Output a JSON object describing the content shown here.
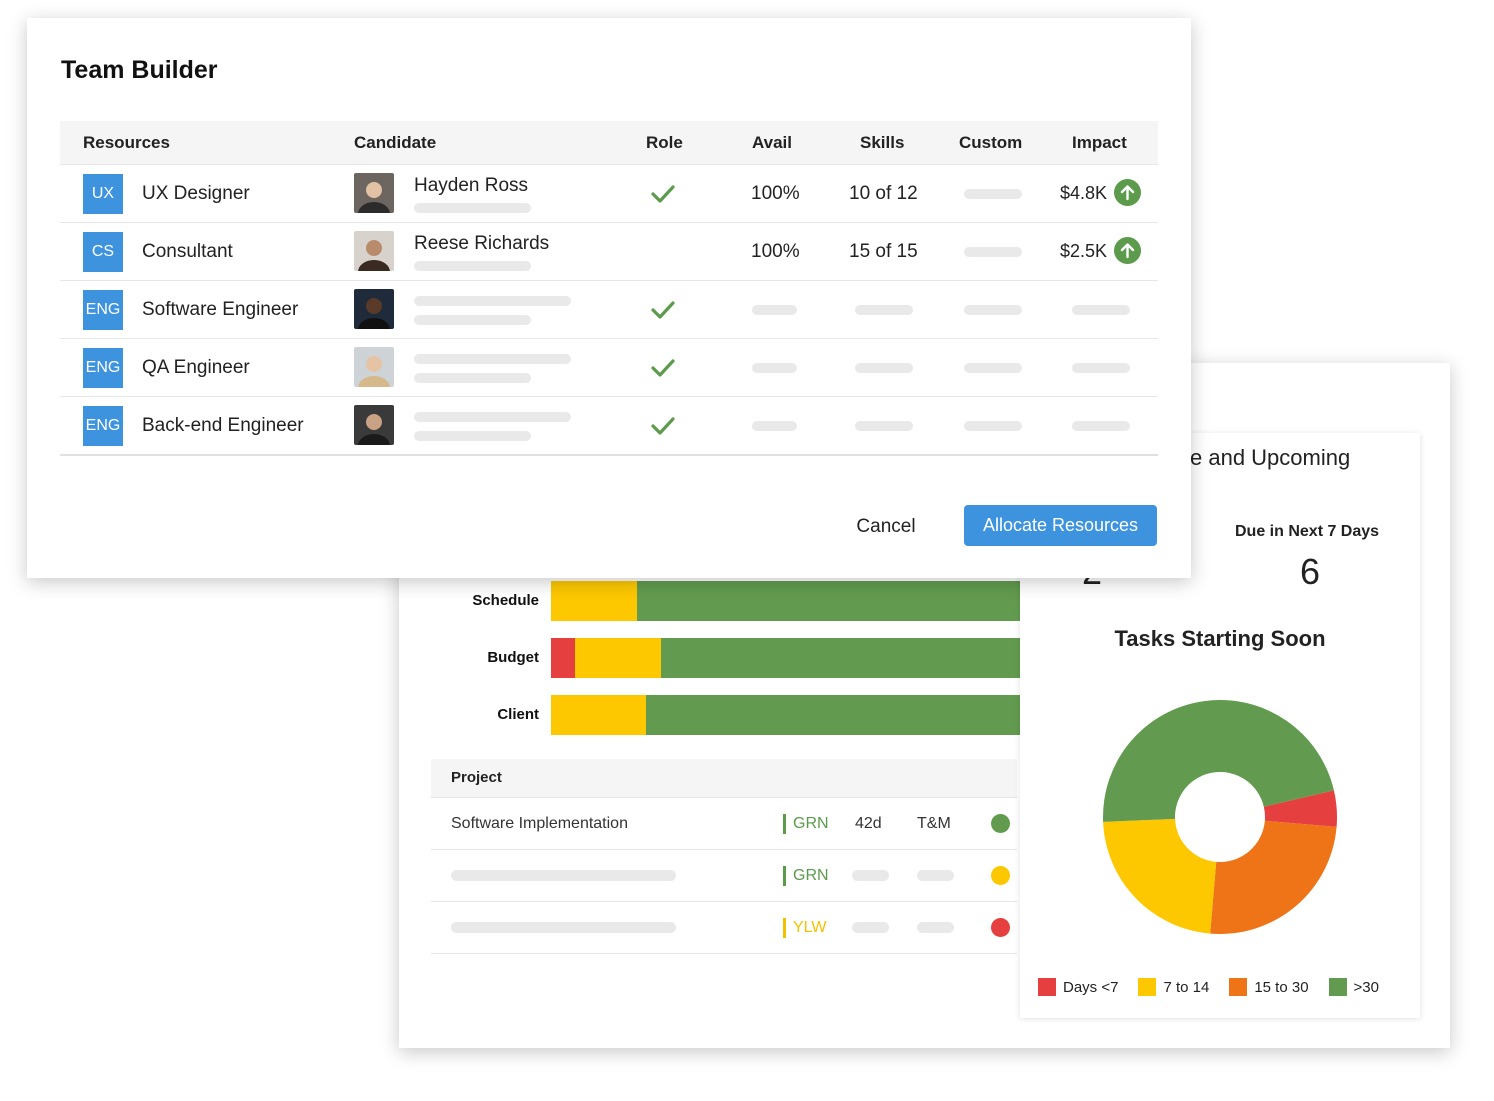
{
  "modal": {
    "title": "Team Builder",
    "columns": [
      "Resources",
      "Candidate",
      "Role",
      "Avail",
      "Skills",
      "Custom",
      "Impact"
    ],
    "rows": [
      {
        "badge": "UX",
        "resource": "UX Designer",
        "candidate": "Hayden Ross",
        "role_check": true,
        "avail": "100%",
        "skills": "10 of 12",
        "impact": "$4.8K"
      },
      {
        "badge": "CS",
        "resource": "Consultant",
        "candidate": "Reese Richards",
        "role_check": false,
        "avail": "100%",
        "skills": "15 of 15",
        "impact": "$2.5K"
      },
      {
        "badge": "ENG",
        "resource": "Software Engineer",
        "candidate": "",
        "role_check": true,
        "avail": "",
        "skills": "",
        "impact": ""
      },
      {
        "badge": "ENG",
        "resource": "QA Engineer",
        "candidate": "",
        "role_check": true,
        "avail": "",
        "skills": "",
        "impact": ""
      },
      {
        "badge": "ENG",
        "resource": "Back-end Engineer",
        "candidate": "",
        "role_check": true,
        "avail": "",
        "skills": "",
        "impact": ""
      }
    ],
    "cancel_label": "Cancel",
    "allocate_label": "Allocate Resources"
  },
  "dashboard": {
    "bars": [
      {
        "label": "Schedule",
        "segments": [
          {
            "color": "#fdc800",
            "pct": 18
          },
          {
            "color": "#629b4f",
            "pct": 82
          }
        ]
      },
      {
        "label": "Budget",
        "segments": [
          {
            "color": "#e53f3f",
            "pct": 5
          },
          {
            "color": "#fdc800",
            "pct": 18
          },
          {
            "color": "#629b4f",
            "pct": 77
          }
        ]
      },
      {
        "label": "Client",
        "segments": [
          {
            "color": "#fdc800",
            "pct": 20
          },
          {
            "color": "#629b4f",
            "pct": 80
          }
        ]
      }
    ],
    "project_table": {
      "header": "Project",
      "rows": [
        {
          "name": "Software Implementation",
          "status": "GRN",
          "status_color": "#5c9a4c",
          "duration": "42d",
          "type": "T&M",
          "dot_color": "#629b4f"
        },
        {
          "name": "",
          "status": "GRN",
          "status_color": "#5c9a4c",
          "duration": "",
          "type": "",
          "dot_color": "#fdc800"
        },
        {
          "name": "",
          "status": "YLW",
          "status_color": "#f2c200",
          "duration": "",
          "type": "",
          "dot_color": "#e53f3f"
        }
      ]
    },
    "side_panel": {
      "title_partial": "e and Upcoming",
      "left_count_partial": "2",
      "due_label": "Due in Next 7 Days",
      "due_count": "6",
      "tasks_title": "Tasks Starting Soon"
    }
  },
  "chart_data": {
    "type": "pie",
    "title": "Tasks Starting Soon",
    "categories": [
      "Days <7",
      "7 to 14",
      "15 to 30",
      ">30"
    ],
    "values": [
      5,
      23,
      25,
      47
    ],
    "colors": [
      "#e53f3f",
      "#fdc800",
      "#ef7418",
      "#629b4f"
    ],
    "legend_position": "bottom"
  }
}
